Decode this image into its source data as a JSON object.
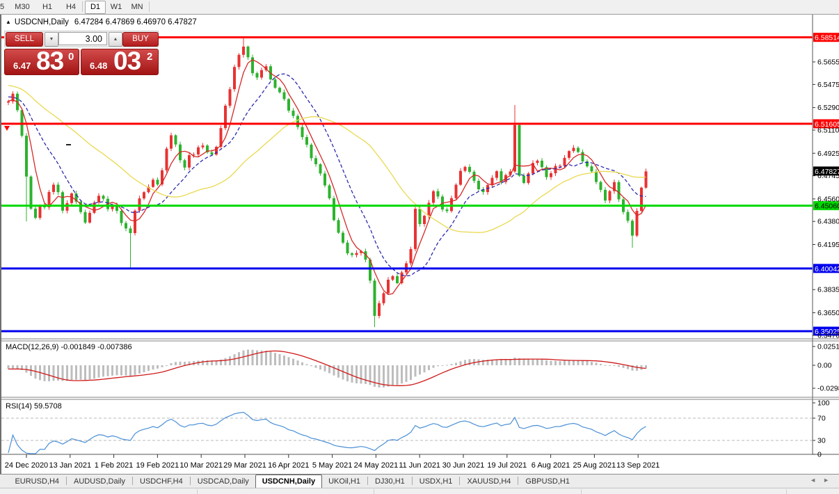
{
  "toolbar": {
    "timeframes": [
      {
        "label": "5",
        "active": false
      },
      {
        "label": "M30",
        "active": false
      },
      {
        "label": "H1",
        "active": false
      },
      {
        "label": "H4",
        "active": false
      },
      {
        "label": "D1",
        "active": true
      },
      {
        "label": "W1",
        "active": false
      },
      {
        "label": "MN",
        "active": false
      }
    ]
  },
  "chart": {
    "collapse_icon": "▲",
    "symbol_title": "USDCNH,Daily",
    "quotes": "6.47284 6.47869 6.46970 6.47827",
    "trade_panel": {
      "sell_label": "SELL",
      "buy_label": "BUY",
      "volume": "3.00",
      "dec_icon": "▼",
      "inc_icon": "▲",
      "sell_price": {
        "prefix": "6.47",
        "big": "83",
        "sup": "0"
      },
      "buy_price": {
        "prefix": "6.48",
        "big": "03",
        "sup": "2"
      }
    }
  },
  "chart_data": {
    "type": "candlestick",
    "symbol": "USDCNH",
    "timeframe": "Daily",
    "price_axis_top": 6.601,
    "price_axis_bottom": 6.344,
    "closes": [
      6.533,
      6.54,
      6.528,
      6.505,
      6.475,
      6.448,
      6.44,
      6.452,
      6.448,
      6.462,
      6.468,
      6.46,
      6.448,
      6.452,
      6.46,
      6.455,
      6.444,
      6.438,
      6.445,
      6.452,
      6.46,
      6.455,
      6.448,
      6.452,
      6.445,
      6.438,
      6.432,
      6.428,
      6.448,
      6.455,
      6.462,
      6.466,
      6.47,
      6.469,
      6.478,
      6.496,
      6.508,
      6.498,
      6.488,
      6.481,
      6.49,
      6.493,
      6.496,
      6.499,
      6.494,
      6.49,
      6.499,
      6.512,
      6.53,
      6.545,
      6.56,
      6.572,
      6.578,
      6.568,
      6.558,
      6.552,
      6.559,
      6.563,
      6.55,
      6.546,
      6.541,
      6.535,
      6.528,
      6.521,
      6.514,
      6.506,
      6.498,
      6.49,
      6.483,
      6.476,
      6.468,
      6.455,
      6.44,
      6.429,
      6.42,
      6.414,
      6.41,
      6.413,
      6.415,
      6.406,
      6.392,
      6.362,
      6.372,
      6.382,
      6.39,
      6.395,
      6.389,
      6.396,
      6.406,
      6.415,
      6.448,
      6.437,
      6.441,
      6.454,
      6.462,
      6.457,
      6.449,
      6.445,
      6.457,
      6.468,
      6.477,
      6.483,
      6.477,
      6.47,
      6.465,
      6.46,
      6.468,
      6.473,
      6.477,
      6.471,
      6.474,
      6.478,
      6.516,
      6.473,
      6.47,
      6.476,
      6.484,
      6.488,
      6.48,
      6.474,
      6.477,
      6.481,
      6.484,
      6.488,
      6.494,
      6.498,
      6.492,
      6.487,
      6.482,
      6.477,
      6.471,
      6.462,
      6.455,
      6.463,
      6.468,
      6.457,
      6.445,
      6.438,
      6.428,
      6.445,
      6.465,
      6.478
    ],
    "wick_overrides": {
      "4": {
        "low": 6.438
      },
      "27": {
        "low": 6.401
      },
      "52": {
        "high": 6.5848
      },
      "81": {
        "low": 6.3535
      },
      "112": {
        "high": 6.531
      },
      "138": {
        "low": 6.417
      }
    },
    "left_context": {
      "bars": 60,
      "start_price": 6.585
    },
    "horizontal_lines": [
      {
        "price": 6.58514,
        "label": "6.58514",
        "color": "#ff0000",
        "text": "#ffffff"
      },
      {
        "price": 6.51605,
        "label": "6.51605",
        "color": "#ff0000",
        "text": "#ffffff"
      },
      {
        "price": 6.4506,
        "label": "6.45060",
        "color": "#00d800",
        "text": "#000000"
      },
      {
        "price": 6.40042,
        "label": "6.40042",
        "color": "#0000ee",
        "text": "#ffffff"
      },
      {
        "price": 6.35025,
        "label": "6.35025",
        "color": "#0000ee",
        "text": "#ffffff"
      }
    ],
    "current_price": {
      "price": 6.47827,
      "label": "6.47827",
      "box": "#000000",
      "text": "#ffffff"
    },
    "axis_labels": [
      "6.56550",
      "6.54750",
      "6.52900",
      "6.51100",
      "6.49250",
      "6.47450",
      "6.45600",
      "6.43800",
      "6.41950",
      "6.38350",
      "6.36500",
      "6.34700"
    ],
    "moving_averages": [
      {
        "name": "ma-fast",
        "period": 5,
        "color": "#d62828",
        "style": "solid"
      },
      {
        "name": "ma-mid",
        "period": 13,
        "color": "#2a2aae",
        "style": "dashed"
      },
      {
        "name": "ma-slow",
        "period": 34,
        "color": "#e9d94f",
        "style": "solid"
      }
    ],
    "indicators": [
      {
        "name": "MACD",
        "label": "MACD(12,26,9) -0.001849 -0.007386",
        "fast": 12,
        "slow": 26,
        "signal": 9,
        "scale_labels": [
          "0.025108",
          "0.00",
          "-0.02988"
        ],
        "hist_color": "#bdbdbd",
        "line_color": "#d01818"
      },
      {
        "name": "RSI",
        "label": "RSI(14) 59.5708",
        "period": 14,
        "scale_labels": [
          "100",
          "70",
          "30",
          "0"
        ],
        "levels": [
          70,
          30
        ],
        "line_color": "#4a8fd6"
      }
    ],
    "date_labels": [
      "24 Dec 2020",
      "13 Jan 2021",
      "1 Feb 2021",
      "19 Feb 2021",
      "10 Mar 2021",
      "29 Mar 2021",
      "16 Apr 2021",
      "5 May 2021",
      "24 May 2021",
      "11 Jun 2021",
      "30 Jun 2021",
      "19 Jul 2021",
      "6 Aug 2021",
      "25 Aug 2021",
      "13 Sep 2021"
    ],
    "colors": {
      "up_candle": "#e83232",
      "down_candle": "#2db22d",
      "background": "#ffffff",
      "frame": "#777777"
    }
  },
  "tabs": {
    "items": [
      {
        "label": "EURUSD,H4",
        "active": false
      },
      {
        "label": "AUDUSD,Daily",
        "active": false
      },
      {
        "label": "USDCHF,H4",
        "active": false
      },
      {
        "label": "USDCAD,Daily",
        "active": false
      },
      {
        "label": "USDCNH,Daily",
        "active": true
      },
      {
        "label": "UKOil,H1",
        "active": false
      },
      {
        "label": "DJ30,H1",
        "active": false
      },
      {
        "label": "USDX,H1",
        "active": false
      },
      {
        "label": "XAUUSD,H4",
        "active": false
      },
      {
        "label": "GBPUSD,H1",
        "active": false
      }
    ],
    "scroll_left_icon": "◄",
    "scroll_right_icon": "►"
  }
}
